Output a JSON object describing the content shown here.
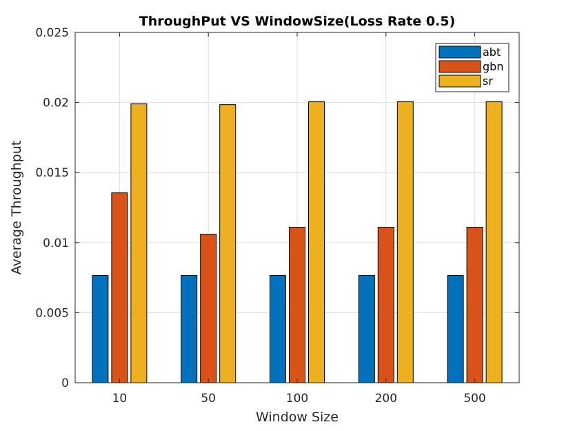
{
  "chart_data": {
    "type": "bar",
    "title": "ThroughPut VS WindowSize(Loss Rate 0.5)",
    "xlabel": "Window Size",
    "ylabel": "Average Throughput",
    "categories": [
      "10",
      "50",
      "100",
      "200",
      "500"
    ],
    "series": [
      {
        "name": "abt",
        "color": "#0072BD",
        "values": [
          0.00765,
          0.00765,
          0.00765,
          0.00765,
          0.00765
        ]
      },
      {
        "name": "gbn",
        "color": "#D95319",
        "values": [
          0.01355,
          0.0106,
          0.0111,
          0.0111,
          0.0111
        ]
      },
      {
        "name": "sr",
        "color": "#EDB120",
        "values": [
          0.0199,
          0.01985,
          0.02005,
          0.02005,
          0.02005
        ]
      }
    ],
    "ylim": [
      0,
      0.025
    ],
    "yticks": [
      "0",
      "0.005",
      "0.01",
      "0.015",
      "0.02",
      "0.025"
    ],
    "ytick_values": [
      0,
      0.005,
      0.01,
      0.015,
      0.02,
      0.025
    ],
    "grid": true,
    "legend_position": "top-right"
  }
}
